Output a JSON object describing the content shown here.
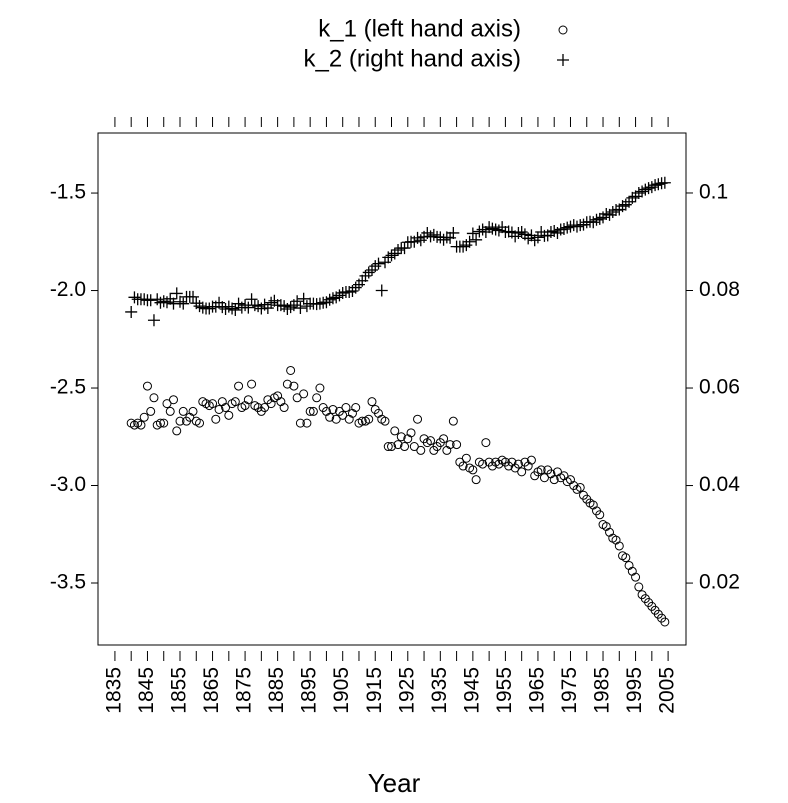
{
  "chart_data": {
    "type": "scatter",
    "xlabel": "Year",
    "xlim": [
      1829.8,
      2010.5
    ],
    "xticks": [
      1835,
      1845,
      1855,
      1865,
      1875,
      1885,
      1895,
      1905,
      1915,
      1925,
      1935,
      1945,
      1955,
      1965,
      1975,
      1985,
      1995,
      2005
    ],
    "xminor_ticks": [
      1840,
      1850,
      1860,
      1870,
      1880,
      1890,
      1900,
      1910,
      1920,
      1930,
      1940,
      1950,
      1960,
      1970,
      1980,
      1990,
      2000
    ],
    "ylim": [
      -3.818,
      -1.192
    ],
    "yticks": [
      -1.5,
      {
        "value": -2,
        "label": "-2.0"
      },
      -2.5,
      {
        "value": -3,
        "label": "-3.0"
      },
      -3.5
    ],
    "y2lim": [
      0.0073,
      0.1123
    ],
    "y2ticks": [
      0.1,
      0.08,
      0.06,
      0.04,
      0.02
    ],
    "x": [
      1840,
      1841,
      1842,
      1843,
      1844,
      1845,
      1846,
      1847,
      1848,
      1849,
      1850,
      1851,
      1852,
      1853,
      1854,
      1855,
      1856,
      1857,
      1858,
      1859,
      1860,
      1861,
      1862,
      1863,
      1864,
      1865,
      1866,
      1867,
      1868,
      1869,
      1870,
      1871,
      1872,
      1873,
      1874,
      1875,
      1876,
      1877,
      1878,
      1879,
      1880,
      1881,
      1882,
      1883,
      1884,
      1885,
      1886,
      1887,
      1888,
      1889,
      1890,
      1891,
      1892,
      1893,
      1894,
      1895,
      1896,
      1897,
      1898,
      1899,
      1900,
      1901,
      1902,
      1903,
      1904,
      1905,
      1906,
      1907,
      1908,
      1909,
      1910,
      1911,
      1912,
      1913,
      1914,
      1915,
      1916,
      1917,
      1918,
      1919,
      1920,
      1921,
      1922,
      1923,
      1924,
      1925,
      1926,
      1927,
      1928,
      1929,
      1930,
      1931,
      1932,
      1933,
      1934,
      1935,
      1936,
      1937,
      1938,
      1939,
      1940,
      1941,
      1942,
      1943,
      1944,
      1945,
      1946,
      1947,
      1948,
      1949,
      1950,
      1951,
      1952,
      1953,
      1954,
      1955,
      1956,
      1957,
      1958,
      1959,
      1960,
      1961,
      1962,
      1963,
      1964,
      1965,
      1966,
      1967,
      1968,
      1969,
      1970,
      1971,
      1972,
      1973,
      1974,
      1975,
      1976,
      1977,
      1978,
      1979,
      1980,
      1981,
      1982,
      1983,
      1984,
      1985,
      1986,
      1987,
      1988,
      1989,
      1990,
      1991,
      1992,
      1993,
      1994,
      1995,
      1996,
      1997,
      1998,
      1999,
      2000,
      2001,
      2002,
      2003,
      2004
    ],
    "series": [
      {
        "name": "k_1 (left hand axis)",
        "marker": "circle",
        "color": "#000000",
        "values": [
          -2.68,
          -2.69,
          -2.68,
          -2.69,
          -2.65,
          -2.49,
          -2.62,
          -2.55,
          -2.69,
          -2.68,
          -2.68,
          -2.58,
          -2.62,
          -2.56,
          -2.72,
          -2.67,
          -2.62,
          -2.67,
          -2.65,
          -2.62,
          -2.67,
          -2.68,
          -2.57,
          -2.58,
          -2.59,
          -2.58,
          -2.66,
          -2.61,
          -2.57,
          -2.6,
          -2.64,
          -2.58,
          -2.57,
          -2.49,
          -2.6,
          -2.59,
          -2.56,
          -2.48,
          -2.59,
          -2.6,
          -2.62,
          -2.6,
          -2.56,
          -2.58,
          -2.55,
          -2.54,
          -2.57,
          -2.6,
          -2.48,
          -2.41,
          -2.49,
          -2.55,
          -2.68,
          -2.53,
          -2.68,
          -2.62,
          -2.62,
          -2.55,
          -2.5,
          -2.6,
          -2.62,
          -2.65,
          -2.61,
          -2.66,
          -2.62,
          -2.64,
          -2.6,
          -2.66,
          -2.63,
          -2.6,
          -2.68,
          -2.67,
          -2.67,
          -2.66,
          -2.57,
          -2.61,
          -2.63,
          -2.66,
          -2.67,
          -2.8,
          -2.8,
          -2.72,
          -2.79,
          -2.75,
          -2.8,
          -2.76,
          -2.73,
          -2.8,
          -2.66,
          -2.82,
          -2.76,
          -2.78,
          -2.77,
          -2.82,
          -2.8,
          -2.78,
          -2.76,
          -2.82,
          -2.79,
          -2.67,
          -2.79,
          -2.88,
          -2.9,
          -2.86,
          -2.91,
          -2.92,
          -2.97,
          -2.88,
          -2.89,
          -2.78,
          -2.88,
          -2.9,
          -2.88,
          -2.89,
          -2.87,
          -2.88,
          -2.9,
          -2.88,
          -2.91,
          -2.89,
          -2.93,
          -2.88,
          -2.9,
          -2.87,
          -2.95,
          -2.93,
          -2.92,
          -2.96,
          -2.92,
          -2.94,
          -2.97,
          -2.93,
          -2.96,
          -2.95,
          -2.98,
          -2.97,
          -3.0,
          -3.02,
          -3.01,
          -3.05,
          -3.07,
          -3.09,
          -3.1,
          -3.13,
          -3.15,
          -3.2,
          -3.21,
          -3.24,
          -3.27,
          -3.28,
          -3.31,
          -3.36,
          -3.37,
          -3.41,
          -3.44,
          -3.47,
          -3.52,
          -3.56,
          -3.58,
          -3.6,
          -3.62,
          -3.64,
          -3.66,
          -3.68,
          -3.7
        ]
      },
      {
        "name": "k_2 (right hand axis)",
        "marker": "plus",
        "color": "#000000",
        "axis": "y2",
        "values": [
          0.0756,
          0.0786,
          0.0782,
          0.0782,
          0.0782,
          0.078,
          0.078,
          0.0739,
          0.0782,
          0.0775,
          0.0778,
          0.0776,
          0.0783,
          0.0773,
          0.0794,
          0.0777,
          0.0773,
          0.0787,
          0.0787,
          0.0787,
          0.0774,
          0.0768,
          0.0765,
          0.0763,
          0.0763,
          0.0767,
          0.0767,
          0.0775,
          0.0766,
          0.0762,
          0.0767,
          0.0763,
          0.076,
          0.0773,
          0.0765,
          0.077,
          0.0765,
          0.0782,
          0.077,
          0.0768,
          0.0763,
          0.0771,
          0.0764,
          0.0775,
          0.0779,
          0.077,
          0.077,
          0.0768,
          0.0762,
          0.0766,
          0.077,
          0.0778,
          0.0764,
          0.0783,
          0.0768,
          0.0773,
          0.0773,
          0.0772,
          0.0773,
          0.0775,
          0.0776,
          0.0781,
          0.0784,
          0.0786,
          0.079,
          0.0795,
          0.0797,
          0.0797,
          0.0799,
          0.0806,
          0.0812,
          0.082,
          0.083,
          0.0837,
          0.0842,
          0.085,
          0.0855,
          0.08,
          0.0858,
          0.0868,
          0.0872,
          0.0876,
          0.0883,
          0.0887,
          0.0887,
          0.0899,
          0.09,
          0.09,
          0.0908,
          0.0903,
          0.091,
          0.0918,
          0.0911,
          0.0914,
          0.091,
          0.0909,
          0.0904,
          0.0909,
          0.0908,
          0.0918,
          0.089,
          0.089,
          0.089,
          0.0893,
          0.09,
          0.0917,
          0.0904,
          0.0921,
          0.0925,
          0.092,
          0.093,
          0.0927,
          0.0925,
          0.0923,
          0.093,
          0.092,
          0.0921,
          0.0919,
          0.0911,
          0.0918,
          0.092,
          0.0915,
          0.0907,
          0.0913,
          0.0903,
          0.0909,
          0.092,
          0.0912,
          0.0913,
          0.092,
          0.0922,
          0.0918,
          0.0925,
          0.0926,
          0.0929,
          0.0931,
          0.0934,
          0.0931,
          0.0934,
          0.0935,
          0.094,
          0.0941,
          0.094,
          0.0945,
          0.0947,
          0.095,
          0.0957,
          0.0955,
          0.0961,
          0.0965,
          0.0966,
          0.0973,
          0.0976,
          0.0982,
          0.099,
          0.0993,
          0.1,
          0.1003,
          0.1007,
          0.101,
          0.1012,
          0.1016,
          0.1018,
          0.102,
          0.1021
        ]
      }
    ]
  }
}
